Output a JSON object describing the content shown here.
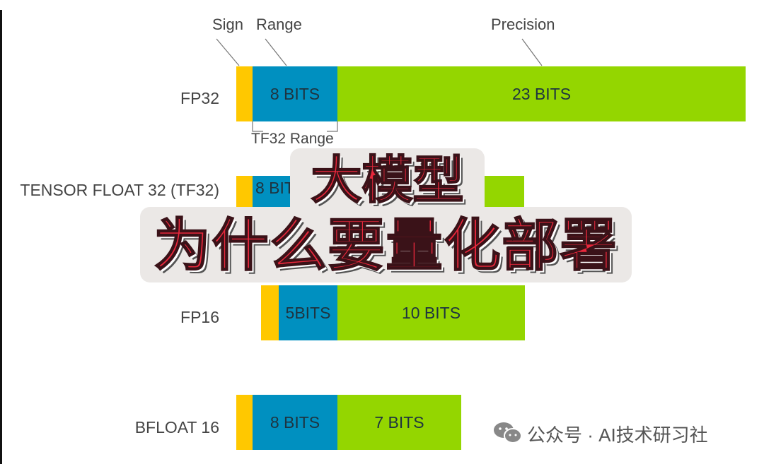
{
  "headers": {
    "sign": "Sign",
    "range": "Range",
    "precision": "Precision"
  },
  "colors": {
    "sign": "#FFC800",
    "range": "#0090C0",
    "precision": "#94D600",
    "title": "#e8283c"
  },
  "formats": [
    {
      "name": "FP32",
      "range_bits": "8 BITS",
      "precision_bits": "23 BITS"
    },
    {
      "name": "TENSOR FLOAT 32 (TF32)",
      "range_bits": "8 BITS",
      "precision_bits": ""
    },
    {
      "name": "FP16",
      "range_bits": "5BITS",
      "precision_bits": "10 BITS"
    },
    {
      "name": "BFLOAT 16",
      "range_bits": "8 BITS",
      "precision_bits": "7 BITS"
    }
  ],
  "tf32_range_label": "TF32 Range",
  "overlay": {
    "line1": "大模型",
    "line2": "为什么要量化部署"
  },
  "watermark": {
    "icon": "wechat-icon",
    "text": "公众号 · AI技术研习社"
  }
}
